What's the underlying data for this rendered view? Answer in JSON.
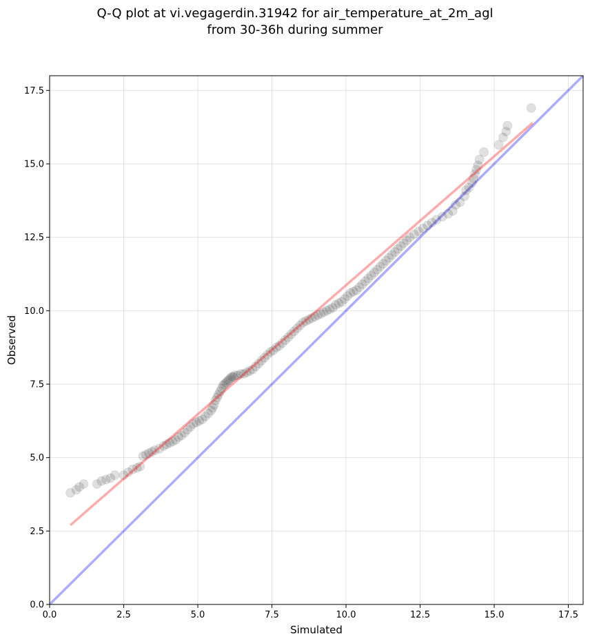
{
  "chart_data": {
    "type": "scatter",
    "title_lines": [
      "Q-Q plot at vi.vegagerdin.31942 for air_temperature_at_2m_agl",
      "from 30-36h during summer"
    ],
    "xlabel": "Simulated",
    "ylabel": "Observed",
    "xlim": [
      0,
      18
    ],
    "ylim": [
      0,
      18
    ],
    "xticks": [
      0.0,
      2.5,
      5.0,
      7.5,
      10.0,
      12.5,
      15.0,
      17.5
    ],
    "yticks": [
      0.0,
      2.5,
      5.0,
      7.5,
      10.0,
      12.5,
      15.0,
      17.5
    ],
    "xtick_labels": [
      "0.0",
      "2.5",
      "5.0",
      "7.5",
      "10.0",
      "12.5",
      "15.0",
      "17.5"
    ],
    "ytick_labels": [
      "0.0",
      "2.5",
      "5.0",
      "7.5",
      "10.0",
      "12.5",
      "15.0",
      "17.5"
    ],
    "grid": true,
    "colors": {
      "points": "#000000",
      "fit_line": "#ff0000",
      "identity_line": "#0000ff",
      "grid": "#b0b0b0"
    },
    "fit_line": {
      "x": [
        0.7,
        16.3
      ],
      "y": [
        2.7,
        16.4
      ]
    },
    "identity_line": {
      "x": [
        0,
        18
      ],
      "y": [
        0,
        18
      ]
    },
    "points": {
      "x": [
        0.7,
        0.9,
        1.0,
        1.15,
        1.6,
        1.75,
        1.9,
        2.05,
        2.2,
        2.5,
        2.65,
        2.8,
        2.95,
        3.05,
        3.15,
        3.25,
        3.35,
        3.45,
        3.55,
        3.7,
        3.85,
        3.95,
        4.05,
        4.15,
        4.25,
        4.35,
        4.45,
        4.55,
        4.65,
        4.75,
        4.85,
        4.95,
        5.05,
        5.15,
        5.25,
        5.35,
        5.45,
        5.5,
        5.55,
        5.6,
        5.65,
        5.7,
        5.75,
        5.8,
        5.85,
        5.9,
        5.95,
        6.0,
        6.05,
        6.1,
        6.15,
        6.2,
        6.25,
        6.35,
        6.45,
        6.55,
        6.65,
        6.75,
        6.85,
        6.95,
        7.05,
        7.15,
        7.25,
        7.35,
        7.45,
        7.55,
        7.65,
        7.75,
        7.85,
        7.95,
        8.05,
        8.15,
        8.25,
        8.35,
        8.45,
        8.55,
        8.65,
        8.75,
        8.85,
        8.95,
        9.05,
        9.15,
        9.25,
        9.35,
        9.45,
        9.55,
        9.65,
        9.75,
        9.85,
        9.95,
        10.05,
        10.15,
        10.25,
        10.35,
        10.45,
        10.55,
        10.65,
        10.75,
        10.85,
        10.95,
        11.05,
        11.15,
        11.25,
        11.35,
        11.45,
        11.55,
        11.65,
        11.75,
        11.85,
        11.95,
        12.05,
        12.15,
        12.3,
        12.45,
        12.6,
        12.75,
        12.9,
        13.05,
        13.25,
        13.45,
        13.6,
        13.7,
        13.85,
        14.0,
        14.05,
        14.15,
        14.25,
        14.3,
        14.35,
        14.4,
        14.45,
        14.5,
        14.65,
        15.15,
        15.3,
        15.4,
        15.45,
        16.25
      ],
      "y": [
        3.8,
        3.9,
        4.0,
        4.1,
        4.1,
        4.2,
        4.25,
        4.3,
        4.4,
        4.4,
        4.5,
        4.6,
        4.65,
        4.7,
        5.05,
        5.1,
        5.15,
        5.2,
        5.25,
        5.3,
        5.4,
        5.45,
        5.5,
        5.55,
        5.6,
        5.7,
        5.75,
        5.85,
        5.95,
        6.05,
        6.15,
        6.2,
        6.25,
        6.3,
        6.4,
        6.5,
        6.6,
        6.7,
        6.8,
        6.95,
        7.05,
        7.15,
        7.25,
        7.35,
        7.45,
        7.5,
        7.55,
        7.6,
        7.65,
        7.7,
        7.75,
        7.75,
        7.8,
        7.8,
        7.85,
        7.85,
        7.9,
        7.95,
        8.0,
        8.1,
        8.2,
        8.3,
        8.4,
        8.5,
        8.6,
        8.65,
        8.75,
        8.8,
        8.9,
        9.0,
        9.1,
        9.2,
        9.3,
        9.4,
        9.5,
        9.6,
        9.65,
        9.7,
        9.75,
        9.8,
        9.85,
        9.9,
        9.95,
        10.0,
        10.05,
        10.1,
        10.2,
        10.25,
        10.3,
        10.4,
        10.5,
        10.6,
        10.65,
        10.7,
        10.8,
        10.9,
        11.0,
        11.1,
        11.2,
        11.3,
        11.4,
        11.5,
        11.6,
        11.7,
        11.8,
        11.9,
        12.0,
        12.1,
        12.2,
        12.3,
        12.4,
        12.5,
        12.6,
        12.7,
        12.8,
        12.9,
        13.0,
        13.1,
        13.2,
        13.3,
        13.4,
        13.6,
        13.7,
        13.9,
        14.1,
        14.2,
        14.35,
        14.5,
        14.65,
        14.8,
        14.95,
        15.15,
        15.4,
        15.65,
        15.9,
        16.1,
        16.3,
        16.9
      ]
    }
  }
}
